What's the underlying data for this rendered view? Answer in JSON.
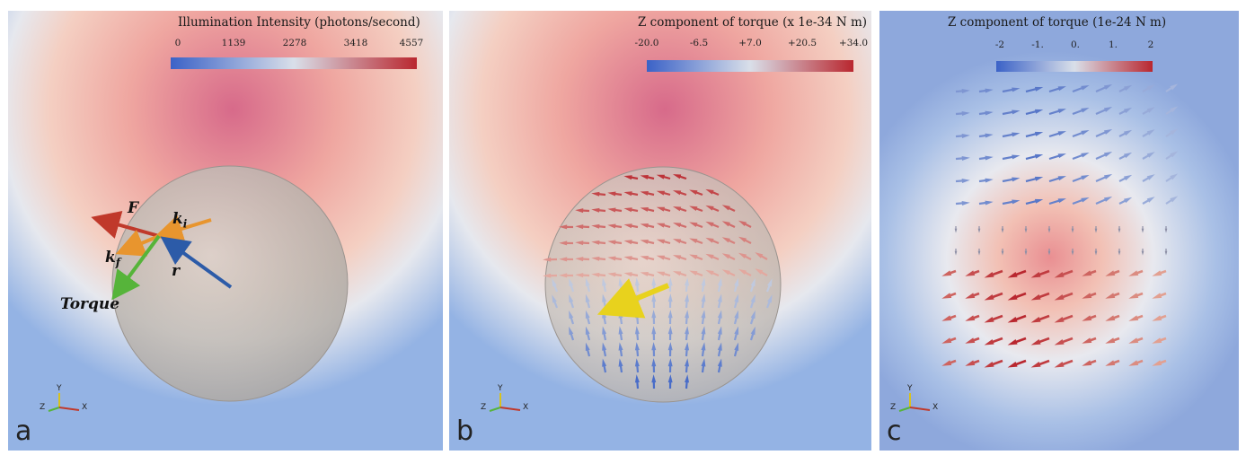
{
  "panels": {
    "a": {
      "letter": "a",
      "colorbar": {
        "title": "Illumination Intensity (photons/second)",
        "ticks": [
          "0",
          "1139",
          "2278",
          "3418",
          "4557"
        ],
        "colors": [
          "#3b62c7",
          "#d9dfe9",
          "#b9272f"
        ]
      },
      "labels": {
        "force": "F",
        "k_i": "k",
        "k_i_sub": "i",
        "k_f": "k",
        "k_f_sub": "f",
        "r": "r",
        "torque": "Torque"
      },
      "arrow_colors": {
        "force": "#c0392b",
        "k_i": "#e8952e",
        "k_f": "#e8952e",
        "r": "#2c5ba8",
        "torque": "#56b43a"
      }
    },
    "b": {
      "letter": "b",
      "colorbar": {
        "title": "Z component of torque (x 1e-34 N m)",
        "ticks": [
          "-20.0",
          "-6.5",
          "+7.0",
          "+20.5",
          "+34.0"
        ],
        "colors": [
          "#3b62c7",
          "#d9dfe9",
          "#b9272f"
        ]
      },
      "center_arrow_color": "#e8d21d"
    },
    "c": {
      "letter": "c",
      "colorbar": {
        "title": "Z component of torque (1e-24 N m)",
        "ticks": [
          "-2",
          "-1.",
          "0.",
          "1.",
          "2"
        ],
        "colors": [
          "#3b62c7",
          "#d9dfe9",
          "#b9272f"
        ]
      }
    }
  },
  "axes_triad": {
    "x": "X",
    "y": "Y",
    "z": "Z",
    "colors": {
      "x": "#c0392b",
      "y": "#d8c21d",
      "z": "#56b43a"
    }
  }
}
